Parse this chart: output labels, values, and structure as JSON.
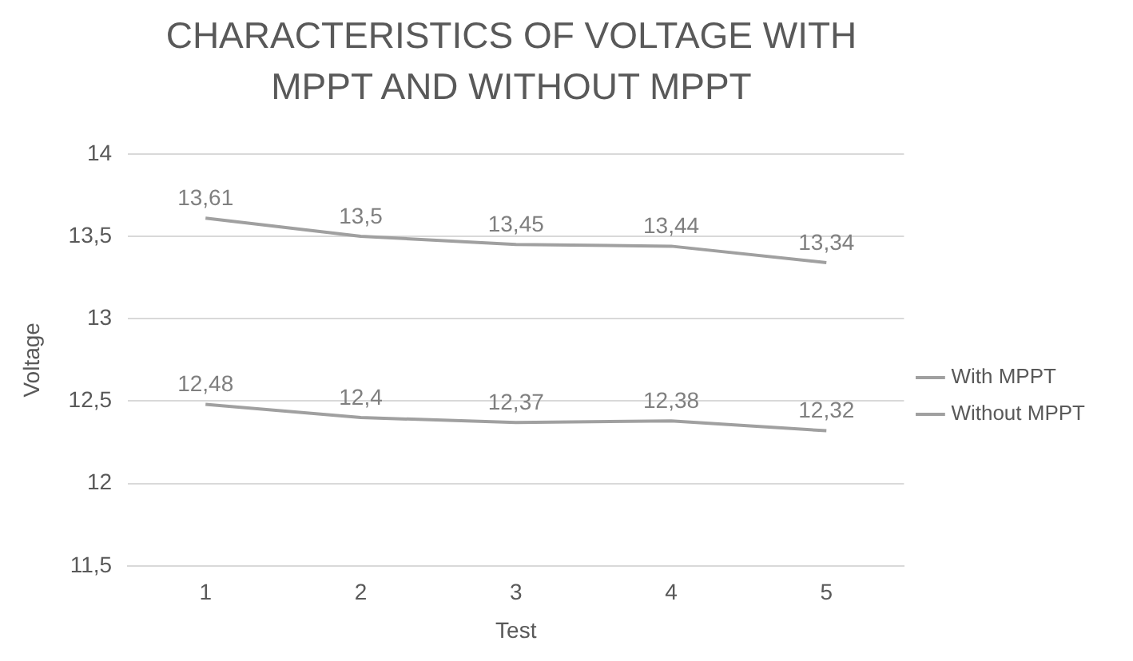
{
  "chart_data": {
    "type": "line",
    "title": "CHARACTERISTICS OF VOLTAGE WITH MPPT AND WITHOUT MPPT",
    "xlabel": "Test",
    "ylabel": "Voltage",
    "categories": [
      "1",
      "2",
      "3",
      "4",
      "5"
    ],
    "series": [
      {
        "name": "With MPPT",
        "color": "#a0a0a0",
        "values": [
          13.61,
          13.5,
          13.45,
          13.44,
          13.34
        ],
        "value_labels": [
          "13,61",
          "13,5",
          "13,45",
          "13,44",
          "13,34"
        ]
      },
      {
        "name": "Without MPPT",
        "color": "#a0a0a0",
        "values": [
          12.48,
          12.4,
          12.37,
          12.38,
          12.32
        ],
        "value_labels": [
          "12,48",
          "12,4",
          "12,37",
          "12,38",
          "12,32"
        ]
      }
    ],
    "ylim": [
      11.5,
      14
    ],
    "yticks": [
      {
        "value": 11.5,
        "label": "11,5"
      },
      12,
      {
        "value": 12.5,
        "label": "12,5"
      },
      13,
      {
        "value": 13.5,
        "label": "13,5"
      },
      14
    ],
    "grid": "y",
    "legend": "right",
    "marker": "none",
    "line_style": "solid"
  }
}
